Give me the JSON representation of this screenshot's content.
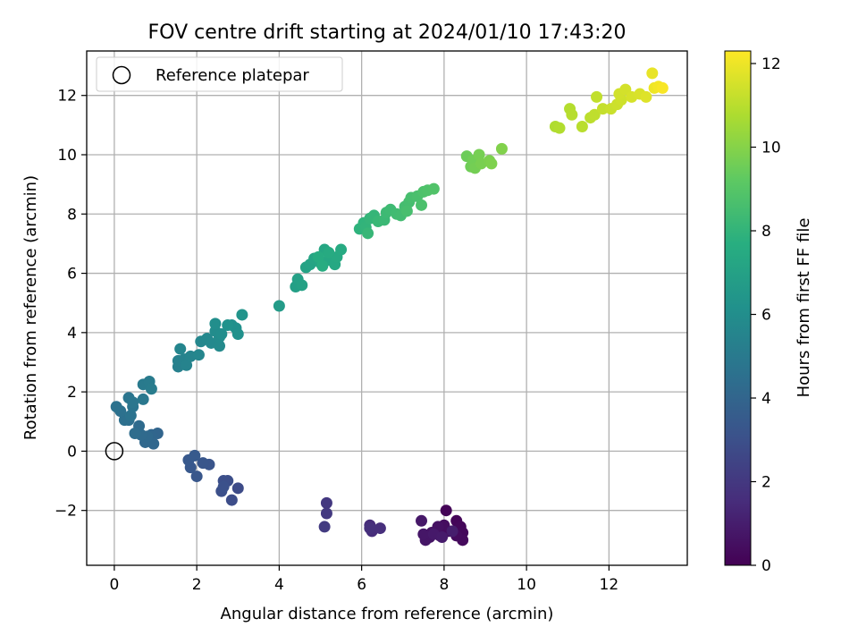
{
  "chart_data": {
    "type": "scatter",
    "title": "FOV centre drift starting at 2024/01/10 17:43:20",
    "xlabel": "Angular distance from reference (arcmin)",
    "ylabel": "Rotation from reference (arcmin)",
    "xlim": [
      -0.67,
      13.9
    ],
    "ylim": [
      -3.85,
      13.5
    ],
    "xticks": [
      0,
      2,
      4,
      6,
      8,
      10,
      12
    ],
    "yticks": [
      -2,
      0,
      2,
      4,
      6,
      8,
      10,
      12
    ],
    "xtick_labels": [
      "0",
      "2",
      "4",
      "6",
      "8",
      "10",
      "12"
    ],
    "ytick_labels": [
      "−2",
      "0",
      "2",
      "4",
      "6",
      "8",
      "10",
      "12"
    ],
    "grid": true,
    "legend": {
      "position": "upper-left",
      "entries": [
        "Reference platepar"
      ]
    },
    "reference_point": {
      "x": 0,
      "y": 0,
      "marker": "open-circle"
    },
    "colorbar": {
      "label": "Hours from first FF file",
      "colormap": "viridis",
      "range": [
        0,
        12.3
      ],
      "ticks": [
        0,
        2,
        4,
        6,
        8,
        10,
        12
      ],
      "tick_labels": [
        "0",
        "2",
        "4",
        "6",
        "8",
        "10",
        "12"
      ]
    },
    "points": [
      {
        "x": 8.05,
        "y": -2.0,
        "c": 0.1
      },
      {
        "x": 8.3,
        "y": -2.35,
        "c": 0.15
      },
      {
        "x": 8.4,
        "y": -2.55,
        "c": 0.2
      },
      {
        "x": 8.45,
        "y": -2.75,
        "c": 0.25
      },
      {
        "x": 8.45,
        "y": -3.0,
        "c": 0.3
      },
      {
        "x": 8.3,
        "y": -2.85,
        "c": 0.35
      },
      {
        "x": 8.1,
        "y": -2.7,
        "c": 0.4
      },
      {
        "x": 8.0,
        "y": -2.5,
        "c": 0.45
      },
      {
        "x": 7.9,
        "y": -2.85,
        "c": 0.5
      },
      {
        "x": 7.85,
        "y": -2.55,
        "c": 0.55
      },
      {
        "x": 7.7,
        "y": -2.75,
        "c": 0.6
      },
      {
        "x": 7.65,
        "y": -2.9,
        "c": 0.65
      },
      {
        "x": 7.55,
        "y": -3.0,
        "c": 0.7
      },
      {
        "x": 7.5,
        "y": -2.8,
        "c": 0.75
      },
      {
        "x": 7.45,
        "y": -2.35,
        "c": 0.8
      },
      {
        "x": 7.75,
        "y": -2.8,
        "c": 0.85
      },
      {
        "x": 7.95,
        "y": -2.9,
        "c": 0.9
      },
      {
        "x": 8.2,
        "y": -2.7,
        "c": 1.0
      },
      {
        "x": 6.2,
        "y": -2.5,
        "c": 1.5
      },
      {
        "x": 6.25,
        "y": -2.7,
        "c": 1.55
      },
      {
        "x": 6.45,
        "y": -2.6,
        "c": 1.6
      },
      {
        "x": 6.2,
        "y": -2.6,
        "c": 1.65
      },
      {
        "x": 5.15,
        "y": -1.75,
        "c": 2.0
      },
      {
        "x": 5.15,
        "y": -2.1,
        "c": 2.05
      },
      {
        "x": 5.1,
        "y": -2.55,
        "c": 2.1
      },
      {
        "x": 3.0,
        "y": -1.25,
        "c": 2.8
      },
      {
        "x": 2.85,
        "y": -1.65,
        "c": 2.85
      },
      {
        "x": 2.75,
        "y": -1.0,
        "c": 2.9
      },
      {
        "x": 2.65,
        "y": -1.0,
        "c": 2.95
      },
      {
        "x": 2.6,
        "y": -1.35,
        "c": 3.0
      },
      {
        "x": 2.65,
        "y": -1.2,
        "c": 3.05
      },
      {
        "x": 2.3,
        "y": -0.45,
        "c": 3.2
      },
      {
        "x": 2.15,
        "y": -0.4,
        "c": 3.25
      },
      {
        "x": 2.0,
        "y": -0.85,
        "c": 3.3
      },
      {
        "x": 1.85,
        "y": -0.55,
        "c": 3.35
      },
      {
        "x": 1.8,
        "y": -0.3,
        "c": 3.4
      },
      {
        "x": 1.95,
        "y": -0.15,
        "c": 3.45
      },
      {
        "x": 1.05,
        "y": 0.6,
        "c": 4.0
      },
      {
        "x": 0.9,
        "y": 0.55,
        "c": 4.05
      },
      {
        "x": 0.95,
        "y": 0.25,
        "c": 4.1
      },
      {
        "x": 0.75,
        "y": 0.3,
        "c": 4.15
      },
      {
        "x": 0.8,
        "y": 0.5,
        "c": 4.2
      },
      {
        "x": 0.65,
        "y": 0.55,
        "c": 4.25
      },
      {
        "x": 0.6,
        "y": 0.85,
        "c": 4.3
      },
      {
        "x": 0.5,
        "y": 0.6,
        "c": 4.35
      },
      {
        "x": 0.35,
        "y": 1.05,
        "c": 4.45
      },
      {
        "x": 0.25,
        "y": 1.05,
        "c": 4.5
      },
      {
        "x": 0.15,
        "y": 1.35,
        "c": 4.55
      },
      {
        "x": 0.05,
        "y": 1.5,
        "c": 4.6
      },
      {
        "x": 0.4,
        "y": 1.2,
        "c": 4.65
      },
      {
        "x": 0.45,
        "y": 1.5,
        "c": 4.7
      },
      {
        "x": 0.35,
        "y": 1.8,
        "c": 4.75
      },
      {
        "x": 0.45,
        "y": 1.65,
        "c": 4.8
      },
      {
        "x": 0.7,
        "y": 1.75,
        "c": 4.9
      },
      {
        "x": 0.7,
        "y": 2.25,
        "c": 5.0
      },
      {
        "x": 0.85,
        "y": 2.35,
        "c": 5.05
      },
      {
        "x": 0.9,
        "y": 2.1,
        "c": 5.1
      },
      {
        "x": 1.55,
        "y": 2.85,
        "c": 5.3
      },
      {
        "x": 1.55,
        "y": 3.05,
        "c": 5.35
      },
      {
        "x": 1.7,
        "y": 3.1,
        "c": 5.4
      },
      {
        "x": 1.75,
        "y": 2.9,
        "c": 5.45
      },
      {
        "x": 1.85,
        "y": 3.2,
        "c": 5.5
      },
      {
        "x": 1.6,
        "y": 3.45,
        "c": 5.55
      },
      {
        "x": 2.05,
        "y": 3.25,
        "c": 5.6
      },
      {
        "x": 2.1,
        "y": 3.7,
        "c": 5.65
      },
      {
        "x": 2.25,
        "y": 3.8,
        "c": 5.7
      },
      {
        "x": 2.35,
        "y": 3.65,
        "c": 5.75
      },
      {
        "x": 2.55,
        "y": 3.55,
        "c": 5.8
      },
      {
        "x": 2.55,
        "y": 3.85,
        "c": 5.85
      },
      {
        "x": 2.45,
        "y": 4.05,
        "c": 5.9
      },
      {
        "x": 2.6,
        "y": 3.95,
        "c": 5.95
      },
      {
        "x": 2.45,
        "y": 4.3,
        "c": 6.0
      },
      {
        "x": 2.85,
        "y": 4.25,
        "c": 6.05
      },
      {
        "x": 2.95,
        "y": 4.15,
        "c": 6.1
      },
      {
        "x": 3.0,
        "y": 3.95,
        "c": 6.15
      },
      {
        "x": 2.75,
        "y": 4.25,
        "c": 6.2
      },
      {
        "x": 3.1,
        "y": 4.6,
        "c": 6.3
      },
      {
        "x": 4.0,
        "y": 4.9,
        "c": 6.7
      },
      {
        "x": 4.4,
        "y": 5.55,
        "c": 6.9
      },
      {
        "x": 4.45,
        "y": 5.8,
        "c": 6.95
      },
      {
        "x": 4.55,
        "y": 5.6,
        "c": 7.0
      },
      {
        "x": 4.65,
        "y": 6.2,
        "c": 7.05
      },
      {
        "x": 4.75,
        "y": 6.3,
        "c": 7.1
      },
      {
        "x": 4.85,
        "y": 6.5,
        "c": 7.15
      },
      {
        "x": 5.0,
        "y": 6.35,
        "c": 7.2
      },
      {
        "x": 5.1,
        "y": 6.8,
        "c": 7.25
      },
      {
        "x": 5.2,
        "y": 6.45,
        "c": 7.3
      },
      {
        "x": 5.35,
        "y": 6.3,
        "c": 7.35
      },
      {
        "x": 5.4,
        "y": 6.55,
        "c": 7.4
      },
      {
        "x": 5.5,
        "y": 6.8,
        "c": 7.45
      },
      {
        "x": 5.2,
        "y": 6.7,
        "c": 7.5
      },
      {
        "x": 4.95,
        "y": 6.55,
        "c": 7.55
      },
      {
        "x": 5.05,
        "y": 6.25,
        "c": 7.6
      },
      {
        "x": 5.95,
        "y": 7.5,
        "c": 7.9
      },
      {
        "x": 6.05,
        "y": 7.7,
        "c": 7.95
      },
      {
        "x": 6.1,
        "y": 7.55,
        "c": 8.0
      },
      {
        "x": 6.2,
        "y": 7.85,
        "c": 8.05
      },
      {
        "x": 6.3,
        "y": 7.95,
        "c": 8.1
      },
      {
        "x": 6.15,
        "y": 7.35,
        "c": 8.15
      },
      {
        "x": 6.4,
        "y": 7.75,
        "c": 8.2
      },
      {
        "x": 6.55,
        "y": 7.8,
        "c": 8.25
      },
      {
        "x": 6.6,
        "y": 8.05,
        "c": 8.3
      },
      {
        "x": 6.7,
        "y": 8.15,
        "c": 8.35
      },
      {
        "x": 6.85,
        "y": 8.0,
        "c": 8.4
      },
      {
        "x": 6.95,
        "y": 7.95,
        "c": 8.45
      },
      {
        "x": 7.05,
        "y": 8.25,
        "c": 8.5
      },
      {
        "x": 7.15,
        "y": 8.4,
        "c": 8.55
      },
      {
        "x": 7.2,
        "y": 8.55,
        "c": 8.6
      },
      {
        "x": 7.35,
        "y": 8.6,
        "c": 8.65
      },
      {
        "x": 7.45,
        "y": 8.3,
        "c": 8.7
      },
      {
        "x": 7.5,
        "y": 8.75,
        "c": 8.75
      },
      {
        "x": 7.6,
        "y": 8.8,
        "c": 8.8
      },
      {
        "x": 7.75,
        "y": 8.85,
        "c": 8.85
      },
      {
        "x": 7.1,
        "y": 8.1,
        "c": 8.6
      },
      {
        "x": 8.55,
        "y": 9.95,
        "c": 9.5
      },
      {
        "x": 8.65,
        "y": 9.6,
        "c": 9.55
      },
      {
        "x": 8.7,
        "y": 9.8,
        "c": 9.6
      },
      {
        "x": 8.75,
        "y": 9.55,
        "c": 9.65
      },
      {
        "x": 8.85,
        "y": 10.0,
        "c": 9.7
      },
      {
        "x": 8.9,
        "y": 9.7,
        "c": 9.75
      },
      {
        "x": 9.1,
        "y": 9.8,
        "c": 9.8
      },
      {
        "x": 9.15,
        "y": 9.7,
        "c": 9.85
      },
      {
        "x": 9.4,
        "y": 10.2,
        "c": 9.9
      },
      {
        "x": 10.7,
        "y": 10.95,
        "c": 10.8
      },
      {
        "x": 10.8,
        "y": 10.9,
        "c": 10.85
      },
      {
        "x": 11.05,
        "y": 11.55,
        "c": 10.9
      },
      {
        "x": 11.1,
        "y": 11.35,
        "c": 10.95
      },
      {
        "x": 11.35,
        "y": 10.95,
        "c": 11.0
      },
      {
        "x": 11.55,
        "y": 11.25,
        "c": 11.05
      },
      {
        "x": 11.65,
        "y": 11.35,
        "c": 11.1
      },
      {
        "x": 11.7,
        "y": 11.95,
        "c": 11.15
      },
      {
        "x": 11.85,
        "y": 11.55,
        "c": 11.2
      },
      {
        "x": 12.05,
        "y": 11.55,
        "c": 11.3
      },
      {
        "x": 12.2,
        "y": 11.7,
        "c": 11.35
      },
      {
        "x": 12.3,
        "y": 11.85,
        "c": 11.4
      },
      {
        "x": 12.25,
        "y": 12.05,
        "c": 11.45
      },
      {
        "x": 12.4,
        "y": 12.2,
        "c": 11.5
      },
      {
        "x": 12.55,
        "y": 11.95,
        "c": 11.55
      },
      {
        "x": 12.75,
        "y": 12.05,
        "c": 11.6
      },
      {
        "x": 12.9,
        "y": 11.95,
        "c": 11.7
      },
      {
        "x": 13.05,
        "y": 12.75,
        "c": 11.9
      },
      {
        "x": 13.1,
        "y": 12.25,
        "c": 12.0
      },
      {
        "x": 13.2,
        "y": 12.3,
        "c": 12.1
      },
      {
        "x": 13.3,
        "y": 12.25,
        "c": 12.2
      }
    ]
  }
}
